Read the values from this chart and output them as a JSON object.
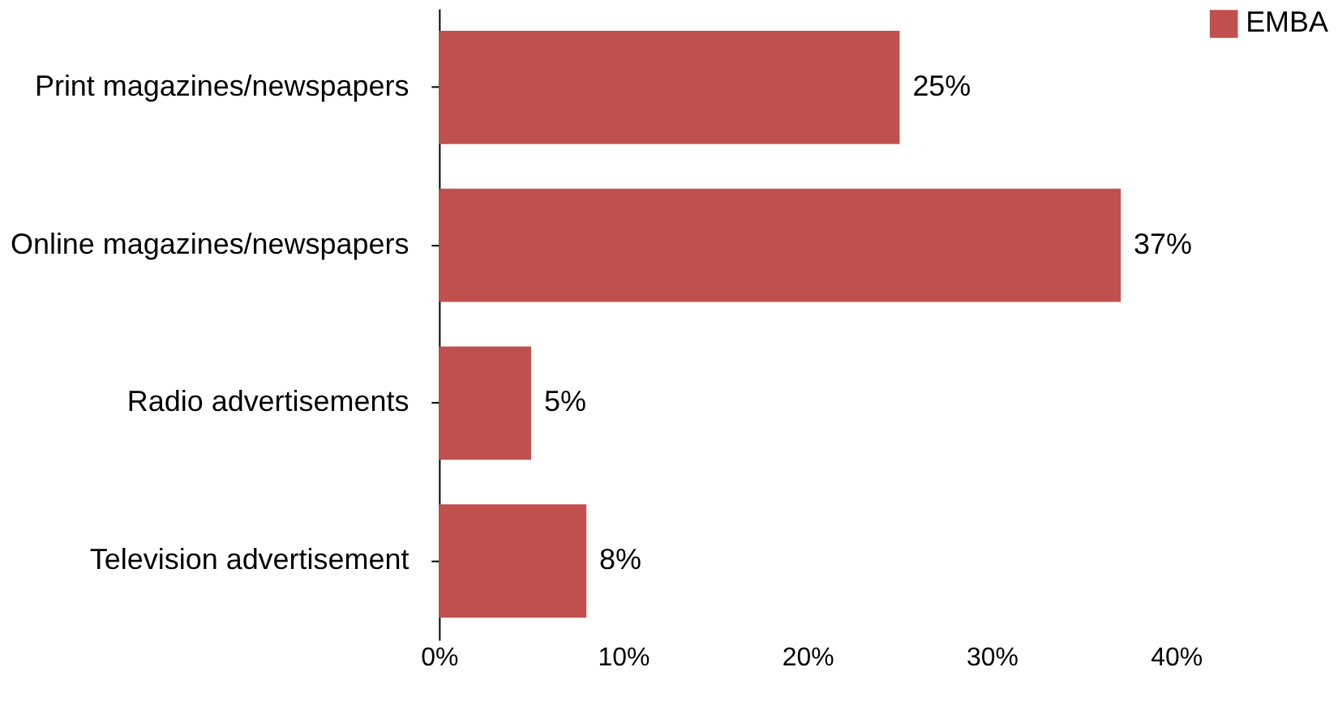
{
  "chart_data": {
    "type": "bar",
    "orientation": "horizontal",
    "categories": [
      "Print magazines/newspapers",
      "Online magazines/newspapers",
      "Radio advertisements",
      "Television advertisement"
    ],
    "series": [
      {
        "name": "EMBA",
        "color": "#c0504d",
        "values": [
          25,
          37,
          5,
          8
        ],
        "value_labels": [
          "25%",
          "37%",
          "5%",
          "8%"
        ]
      }
    ],
    "xlim": [
      0,
      40
    ],
    "xticks": [
      {
        "value": 0,
        "label": "0%"
      },
      {
        "value": 10,
        "label": "10%"
      },
      {
        "value": 20,
        "label": "20%"
      },
      {
        "value": 30,
        "label": "30%"
      },
      {
        "value": 40,
        "label": "40%"
      }
    ],
    "grid": false,
    "legend": "right"
  }
}
